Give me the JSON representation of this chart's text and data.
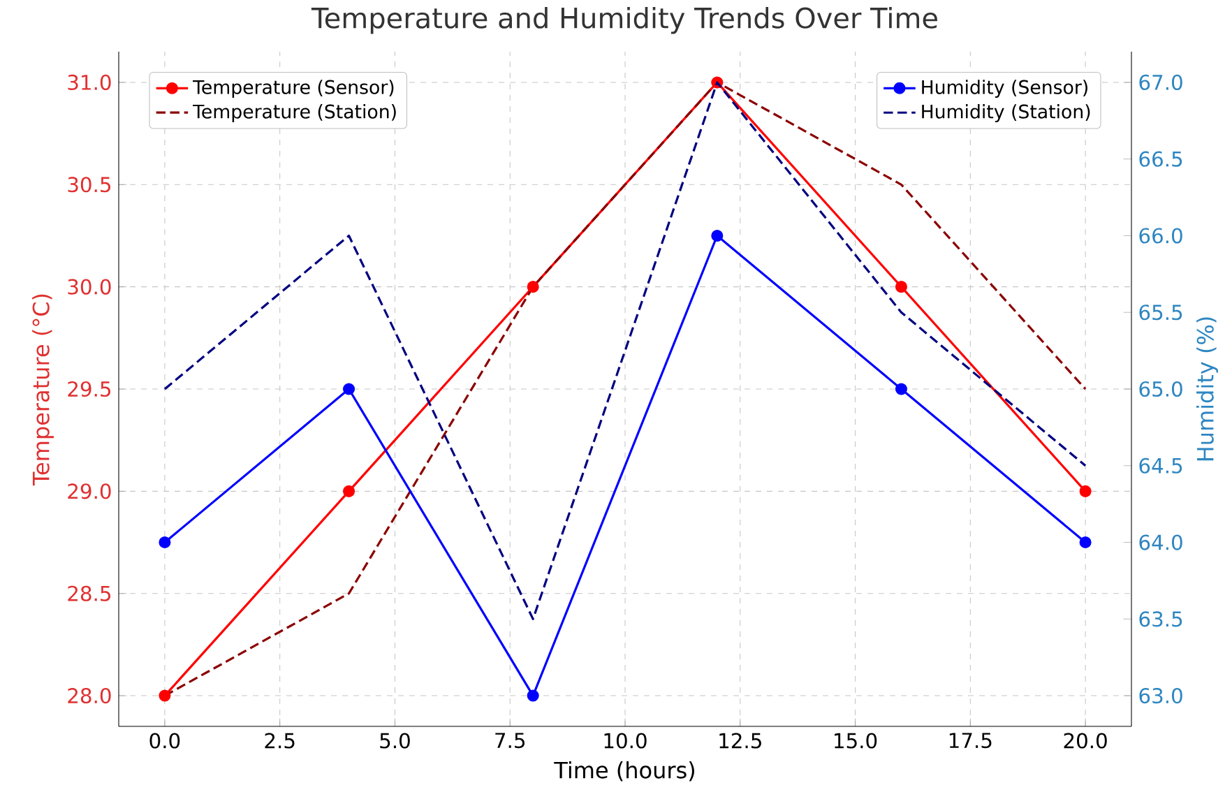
{
  "chart_data": {
    "type": "line",
    "title": "Temperature and Humidity Trends Over Time",
    "xlabel": "Time (hours)",
    "ylabel": "Temperature (°C)",
    "y2label": "Humidity (%)",
    "x": [
      0,
      4,
      8,
      12,
      16,
      20
    ],
    "series": [
      {
        "name": "Temperature (Sensor)",
        "color": "#ff0000",
        "values": [
          28,
          29,
          30,
          31,
          30,
          29
        ],
        "marker": "circle",
        "line_style": "solid"
      },
      {
        "name": "Temperature (Station)",
        "color": "#8b0000",
        "values": [
          28,
          28.5,
          30,
          31,
          30.5,
          29.5
        ],
        "marker": "none",
        "line_style": "dashed"
      },
      {
        "name": "Humidity (Sensor)",
        "color": "#0000ff",
        "values": [
          64,
          65,
          63,
          66,
          65,
          64
        ],
        "marker": "circle",
        "line_style": "solid",
        "axis": "y2"
      },
      {
        "name": "Humidity (Station)",
        "color": "#000080",
        "values": [
          65,
          66,
          63.5,
          67,
          65.5,
          64.5
        ],
        "marker": "none",
        "line_style": "dashed",
        "axis": "y2"
      }
    ],
    "xlim": [
      -1,
      21
    ],
    "xticks": [
      {
        "value": 0,
        "label": "0.0"
      },
      {
        "value": 2.5,
        "label": "2.5"
      },
      {
        "value": 5,
        "label": "5.0"
      },
      {
        "value": 7.5,
        "label": "7.5"
      },
      {
        "value": 10,
        "label": "10.0"
      },
      {
        "value": 12.5,
        "label": "12.5"
      },
      {
        "value": 15,
        "label": "15.0"
      },
      {
        "value": 17.5,
        "label": "17.5"
      },
      {
        "value": 20,
        "label": "20.0"
      }
    ],
    "ylim": [
      27.85,
      31.15
    ],
    "yticks": [
      {
        "value": 28,
        "label": "28.0"
      },
      {
        "value": 28.5,
        "label": "28.5"
      },
      {
        "value": 29,
        "label": "29.0"
      },
      {
        "value": 29.5,
        "label": "29.5"
      },
      {
        "value": 30,
        "label": "30.0"
      },
      {
        "value": 30.5,
        "label": "30.5"
      },
      {
        "value": 31,
        "label": "31.0"
      }
    ],
    "y2lim": [
      62.8,
      67.2
    ],
    "y2ticks": [
      {
        "value": 63,
        "label": "63.0"
      },
      {
        "value": 63.5,
        "label": "63.5"
      },
      {
        "value": 64,
        "label": "64.0"
      },
      {
        "value": 64.5,
        "label": "64.5"
      },
      {
        "value": 65,
        "label": "65.0"
      },
      {
        "value": 65.5,
        "label": "65.5"
      },
      {
        "value": 66,
        "label": "66.0"
      },
      {
        "value": 66.5,
        "label": "66.5"
      },
      {
        "value": 67,
        "label": "67.0"
      }
    ],
    "grid": true,
    "legend": "top"
  }
}
